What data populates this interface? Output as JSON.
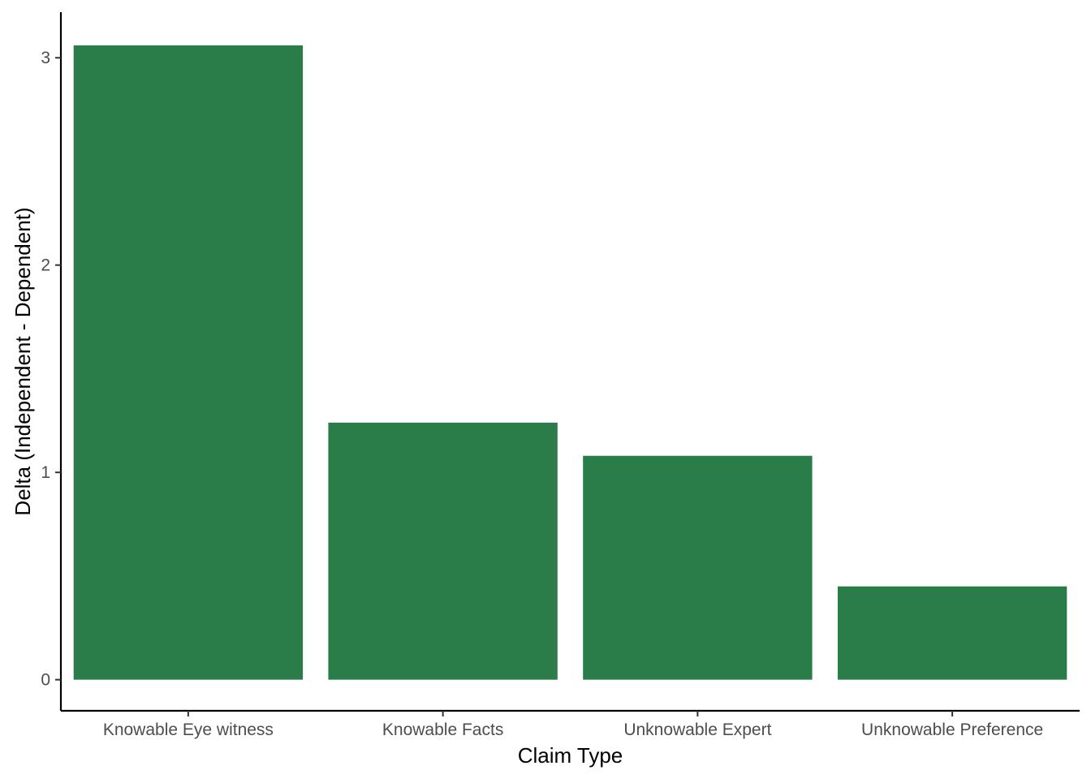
{
  "chart_data": {
    "type": "bar",
    "categories": [
      "Knowable Eye witness",
      "Knowable Facts",
      "Unknowable Expert",
      "Unknowable Preference"
    ],
    "values": [
      3.06,
      1.24,
      1.08,
      0.45
    ],
    "title": "",
    "xlabel": "Claim Type",
    "ylabel": "Delta (Independent - Dependent)",
    "ylim": [
      -0.15,
      3.22
    ],
    "yticks": [
      0,
      1,
      2,
      3
    ],
    "bar_color": "#2a7d48",
    "grid": false,
    "legend": "none"
  }
}
